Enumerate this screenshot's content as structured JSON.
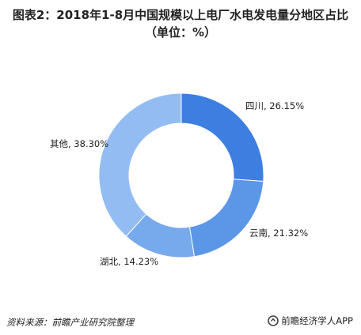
{
  "title": {
    "line1": "图表2：2018年1-8月中国规模以上电厂水电发电量分地区占比",
    "line2": "（单位：%）"
  },
  "chart_data": {
    "type": "pie",
    "variant": "donut",
    "categories": [
      "四川",
      "云南",
      "湖北",
      "其他"
    ],
    "values": [
      26.15,
      21.32,
      14.23,
      38.3
    ],
    "labels": [
      "四川, 26.15%",
      "云南, 21.32%",
      "湖北, 14.23%",
      "其他, 38.30%"
    ],
    "colors": [
      "#3d7fe0",
      "#5c97e7",
      "#77a9ed",
      "#93bdf2"
    ],
    "start_angle_deg": 0,
    "direction": "clockwise",
    "legend": "none"
  },
  "footer": {
    "source": "资料来源：前瞻产业研究院整理",
    "brand": "前瞻经济学人APP",
    "brand_icon": "qianzhan-logo-icon"
  }
}
